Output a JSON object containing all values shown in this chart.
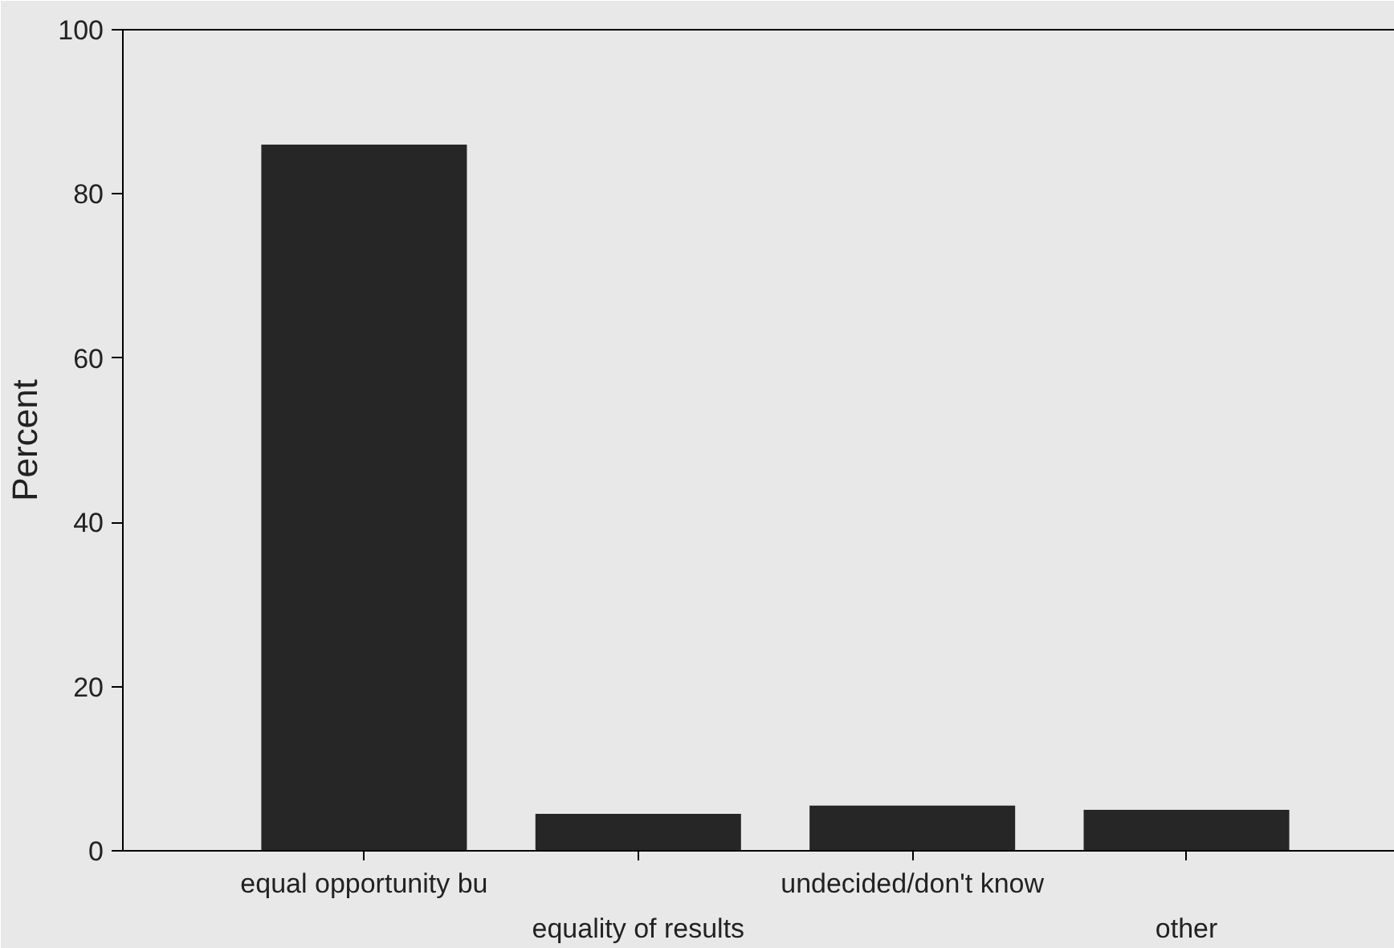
{
  "chart_data": {
    "type": "bar",
    "ylabel": "Percent",
    "categories": [
      "equal opportunity bu",
      "equality of results",
      "undecided/don't know",
      "other"
    ],
    "values": [
      86,
      4.5,
      5.5,
      5
    ],
    "color": "#262626",
    "ylim": [
      0,
      100
    ],
    "yticks": [
      0,
      20,
      40,
      60,
      80,
      100
    ]
  }
}
